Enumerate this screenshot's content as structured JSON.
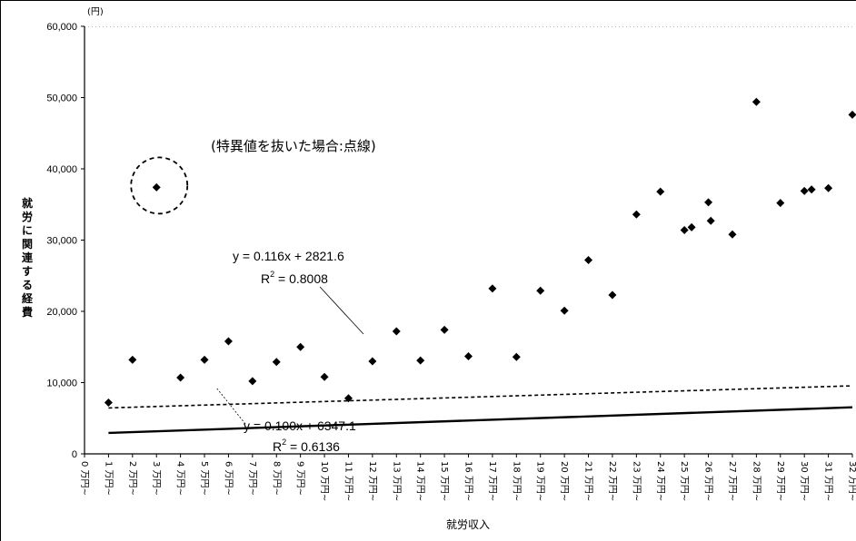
{
  "chart_data": {
    "type": "scatter",
    "ylabel": "就労に関連する経費",
    "xlabel": "就労収入",
    "yunit": "(円)",
    "ylim": [
      0,
      60000
    ],
    "yticks": [
      0,
      10000,
      20000,
      30000,
      40000,
      50000,
      60000
    ],
    "ytick_labels": [
      "0",
      "10,000",
      "20,000",
      "30,000",
      "40,000",
      "50,000",
      "60,000"
    ],
    "categories": [
      "0 万円~",
      "1 万円~",
      "2 万円~",
      "3 万円~",
      "4 万円~",
      "5 万円~",
      "6 万円~",
      "7 万円~",
      "8 万円~",
      "9 万円~",
      "10 万円~",
      "11 万円~",
      "12 万円~",
      "13 万円~",
      "14 万円~",
      "15 万円~",
      "16 万円~",
      "17 万円~",
      "18 万円~",
      "19 万円~",
      "20 万円~",
      "21 万円~",
      "22 万円~",
      "23 万円~",
      "24 万円~",
      "25 万円~",
      "26 万円~",
      "27 万円~",
      "28 万円~",
      "29 万円~",
      "30 万円~",
      "31 万円~",
      "32 万円~"
    ],
    "points": [
      {
        "x": 1,
        "y": 7200
      },
      {
        "x": 2,
        "y": 13200
      },
      {
        "x": 3,
        "y": 37400
      },
      {
        "x": 4,
        "y": 10700
      },
      {
        "x": 5,
        "y": 13200
      },
      {
        "x": 6,
        "y": 15800
      },
      {
        "x": 7,
        "y": 10200
      },
      {
        "x": 8,
        "y": 12900
      },
      {
        "x": 9,
        "y": 15000
      },
      {
        "x": 10,
        "y": 10800
      },
      {
        "x": 11,
        "y": 7800
      },
      {
        "x": 12,
        "y": 13000
      },
      {
        "x": 13,
        "y": 17200
      },
      {
        "x": 14,
        "y": 13100
      },
      {
        "x": 15,
        "y": 17400
      },
      {
        "x": 16,
        "y": 13700
      },
      {
        "x": 17,
        "y": 23200
      },
      {
        "x": 18,
        "y": 13600
      },
      {
        "x": 19,
        "y": 22900
      },
      {
        "x": 20,
        "y": 20100
      },
      {
        "x": 21,
        "y": 27200
      },
      {
        "x": 22,
        "y": 22300
      },
      {
        "x": 23,
        "y": 33600
      },
      {
        "x": 24,
        "y": 36800
      },
      {
        "x": 25,
        "y": 31400
      },
      {
        "x": 26,
        "y": 35300
      },
      {
        "x": 27,
        "y": 30800
      },
      {
        "x": 28,
        "y": 49400
      },
      {
        "x": 29,
        "y": 35200
      },
      {
        "x": 30,
        "y": 36900
      },
      {
        "x": 31,
        "y": 37300
      },
      {
        "x": 32,
        "y": 47600
      },
      {
        "x": 25.3,
        "y": 31800
      },
      {
        "x": 26.1,
        "y": 32700
      },
      {
        "x": 30.3,
        "y": 37100
      }
    ],
    "trendlines": [
      {
        "style": "solid",
        "slope": 0.116,
        "intercept": 2821.6,
        "x_range": [
          1,
          32
        ],
        "equation": "y = 0.116x + 2821.6",
        "r2_prefix": "R",
        "r2_value": " = 0.8008"
      },
      {
        "style": "dashed",
        "slope": 0.1,
        "intercept": 6347.1,
        "x_range": [
          1,
          32
        ],
        "equation": "y = 0.100x + 6347.1",
        "r2_prefix": "R",
        "r2_value": " = 0.6136"
      }
    ],
    "annotation": "(特異値を抜いた場合:点線)",
    "outlier_marker": {
      "x": 3,
      "y": 37400
    }
  }
}
